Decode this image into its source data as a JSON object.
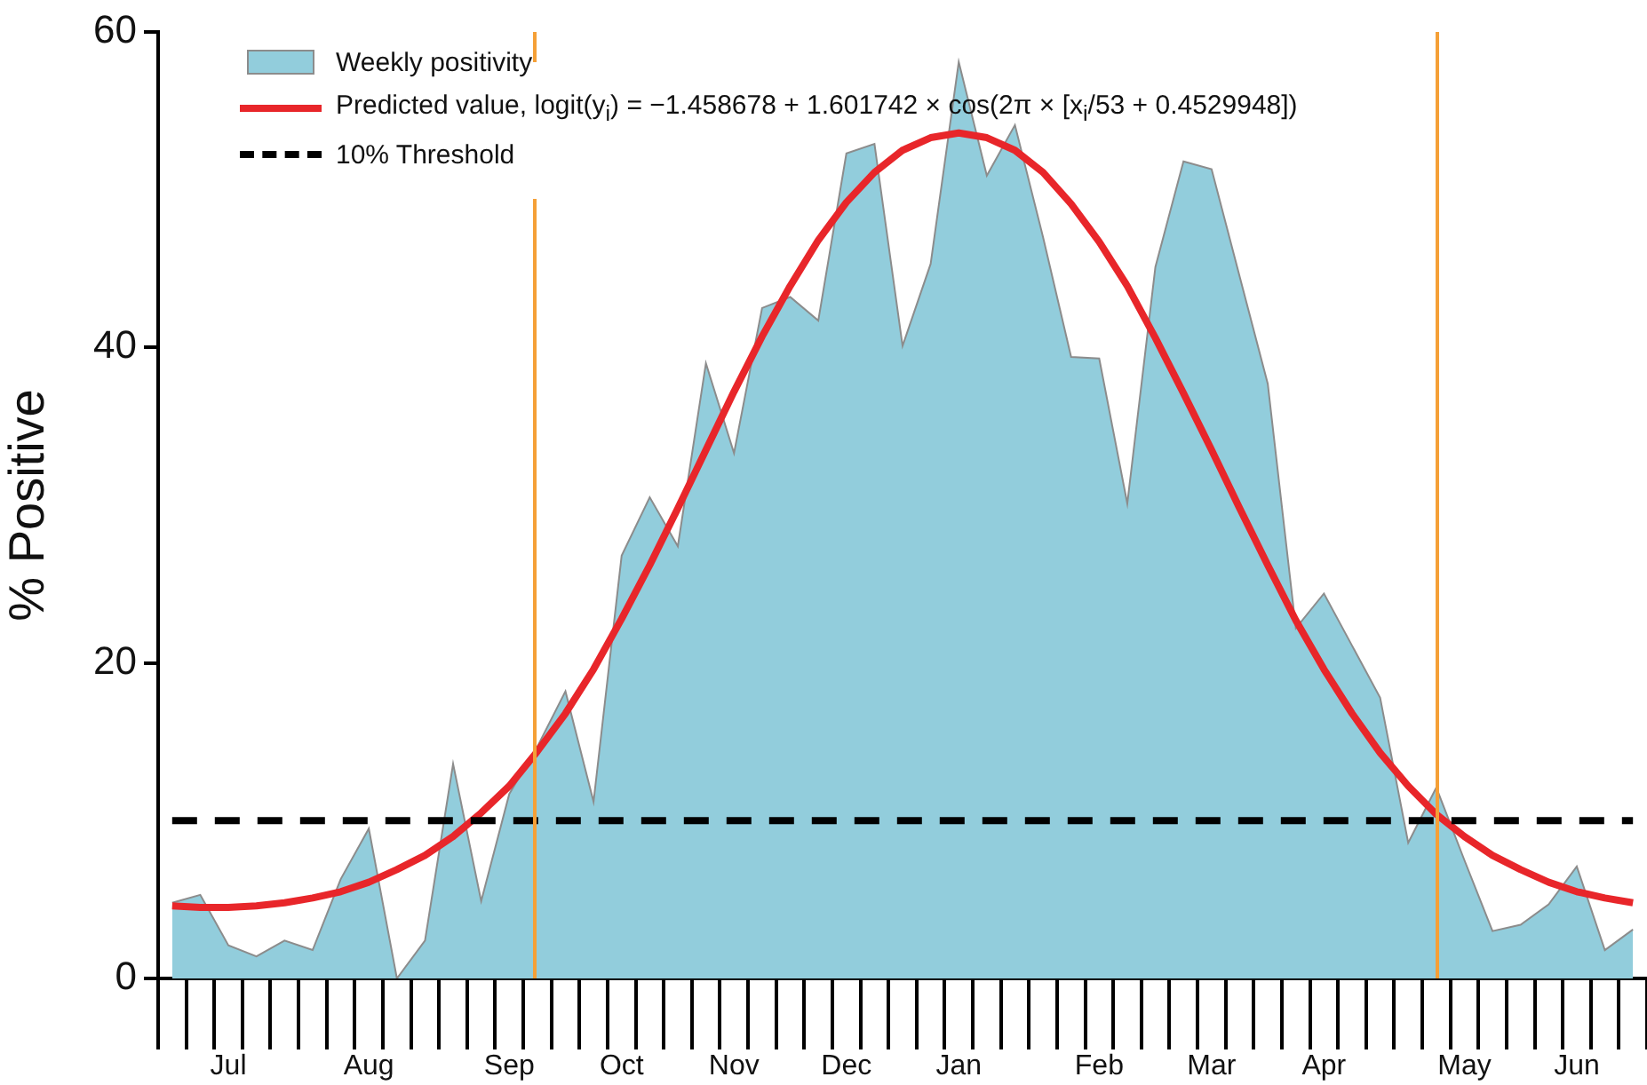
{
  "chart_data": {
    "type": "area",
    "ylabel": "% Positive",
    "ylim": [
      0,
      60
    ],
    "yticks": [
      0,
      20,
      40,
      60
    ],
    "grid": false,
    "legend": "top left",
    "marker": "none",
    "categories": [
      null,
      null,
      "Jul",
      null,
      null,
      null,
      null,
      "Aug",
      null,
      null,
      null,
      null,
      "Sep",
      null,
      null,
      null,
      "Oct",
      null,
      null,
      null,
      "Nov",
      null,
      null,
      null,
      "Dec",
      null,
      null,
      null,
      "Jan",
      null,
      null,
      null,
      null,
      "Feb",
      null,
      null,
      null,
      "Mar",
      null,
      null,
      null,
      "Apr",
      null,
      null,
      null,
      null,
      "May",
      null,
      null,
      null,
      "Jun",
      null,
      null
    ],
    "series": [
      {
        "name": "Weekly positivity",
        "color": "#92cddc",
        "values": [
          4.8,
          5.3,
          2.1,
          1.4,
          2.4,
          1.8,
          6.3,
          9.5,
          0,
          2.4,
          13.6,
          4.9,
          11.7,
          14.7,
          18.2,
          11.2,
          26.8,
          30.5,
          27.4,
          39.0,
          33.3,
          42.5,
          43.2,
          41.7,
          52.3,
          52.9,
          40.1,
          45.3,
          58.1,
          50.9,
          54.1,
          47.0,
          39.4,
          39.3,
          30.1,
          45.1,
          51.8,
          51.3,
          44.5,
          37.7,
          22.2,
          24.4,
          21.1,
          17.8,
          8.6,
          12.1,
          7.5,
          3.0,
          3.4,
          4.7,
          7.1,
          1.8,
          3.1
        ]
      },
      {
        "name": "Predicted value, logit(y$_{i}$) = −1.458678 + 1.601742 × cos(2π × [x$_{i}$/53 + 0.4529948])",
        "type": "line",
        "color": "#e8262a",
        "values": [
          4.6,
          4.5,
          4.5,
          4.6,
          4.8,
          5.1,
          5.5,
          6.1,
          6.9,
          7.8,
          9.0,
          10.5,
          12.2,
          14.4,
          16.8,
          19.6,
          22.8,
          26.2,
          29.8,
          33.5,
          37.2,
          40.7,
          43.9,
          46.8,
          49.2,
          51.1,
          52.5,
          53.3,
          53.6,
          53.3,
          52.5,
          51.1,
          49.1,
          46.7,
          43.9,
          40.6,
          37.1,
          33.5,
          29.8,
          26.2,
          22.7,
          19.6,
          16.8,
          14.3,
          12.2,
          10.4,
          9.0,
          7.8,
          6.9,
          6.1,
          5.5,
          5.1,
          4.8
        ]
      },
      {
        "name": "10% Threshold",
        "type": "line",
        "color": "#000000",
        "line_style": "dashed",
        "values": [
          10,
          10,
          10,
          10,
          10,
          10,
          10,
          10,
          10,
          10,
          10,
          10,
          10,
          10,
          10,
          10,
          10,
          10,
          10,
          10,
          10,
          10,
          10,
          10,
          10,
          10,
          10,
          10,
          10,
          10,
          10,
          10,
          10,
          10,
          10,
          10,
          10,
          10,
          10,
          10,
          10,
          10,
          10,
          10,
          10,
          10,
          10,
          10,
          10,
          10,
          10,
          10,
          10
        ]
      }
    ]
  }
}
